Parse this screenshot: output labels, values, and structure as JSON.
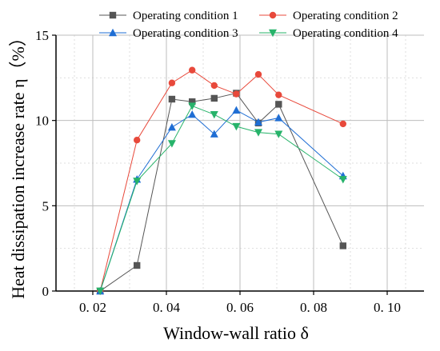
{
  "chart_data": {
    "type": "line",
    "xlabel": "Window-wall ratio δ",
    "ylabel": "Heat dissipation increase rate η（%）",
    "xlim": [
      0.01,
      0.11
    ],
    "ylim": [
      0,
      15
    ],
    "x_ticks": [
      0.02,
      0.04,
      0.06,
      0.08,
      0.1
    ],
    "x_tick_labels": [
      "0. 02",
      "0. 04",
      "0. 06",
      "0. 08",
      "0. 10"
    ],
    "y_ticks": [
      0,
      5,
      10,
      15
    ],
    "y_tick_labels": [
      "0",
      "5",
      "10",
      "15"
    ],
    "grid": true,
    "legend_position": "top",
    "series": [
      {
        "name": "Operating condition 1",
        "color": "#555555",
        "marker": "square",
        "x": [
          0.022,
          0.032,
          0.0415,
          0.047,
          0.053,
          0.059,
          0.065,
          0.0705,
          0.088
        ],
        "y": [
          0,
          1.5,
          11.25,
          11.1,
          11.3,
          11.6,
          9.85,
          10.95,
          2.65
        ]
      },
      {
        "name": "Operating condition 2",
        "color": "#e8493b",
        "marker": "circle",
        "x": [
          0.022,
          0.032,
          0.0415,
          0.047,
          0.053,
          0.059,
          0.065,
          0.0705,
          0.088
        ],
        "y": [
          0,
          8.85,
          12.2,
          12.95,
          12.05,
          11.55,
          12.7,
          11.5,
          9.8
        ]
      },
      {
        "name": "Operating condition 3",
        "color": "#1f6ed4",
        "marker": "triangle-up",
        "x": [
          0.022,
          0.032,
          0.0415,
          0.047,
          0.053,
          0.059,
          0.065,
          0.0705,
          0.088
        ],
        "y": [
          0,
          6.55,
          9.6,
          10.35,
          9.2,
          10.6,
          9.9,
          10.15,
          6.75
        ]
      },
      {
        "name": "Operating condition 4",
        "color": "#27b36a",
        "marker": "triangle-down",
        "x": [
          0.022,
          0.032,
          0.0415,
          0.047,
          0.053,
          0.059,
          0.065,
          0.0705,
          0.088
        ],
        "y": [
          0,
          6.45,
          8.65,
          10.85,
          10.35,
          9.65,
          9.3,
          9.2,
          6.55
        ]
      }
    ]
  }
}
